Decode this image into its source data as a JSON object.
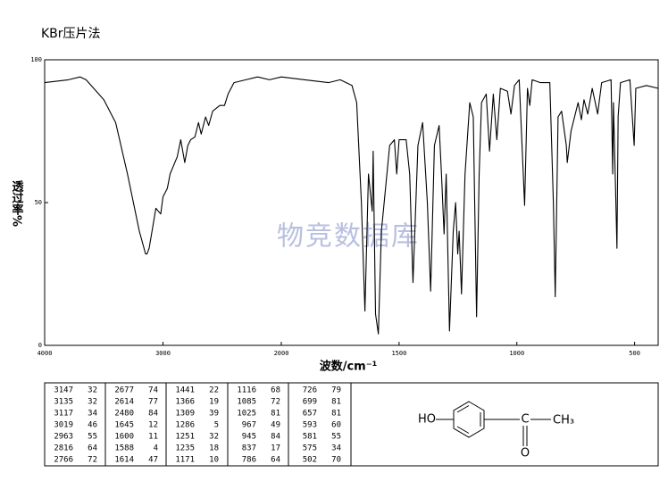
{
  "chart_data": {
    "type": "line",
    "title": "KBr压片法",
    "xlabel": "波数/cm⁻¹",
    "ylabel": "透过率%",
    "watermark": "物竞数据库",
    "xlim": [
      4000,
      400
    ],
    "x_scale_break": 2000,
    "xticks": [
      4000,
      3000,
      2000,
      1500,
      1000,
      500
    ],
    "ylim": [
      0,
      100
    ],
    "yticks": [
      0,
      50,
      100
    ],
    "color": "#000000",
    "x": [
      4000,
      3800,
      3700,
      3650,
      3500,
      3400,
      3300,
      3200,
      3147,
      3135,
      3117,
      3060,
      3019,
      3000,
      2963,
      2940,
      2880,
      2850,
      2816,
      2790,
      2766,
      2730,
      2700,
      2677,
      2640,
      2614,
      2580,
      2520,
      2480,
      2450,
      2400,
      2300,
      2200,
      2100,
      2000,
      1900,
      1800,
      1750,
      1700,
      1680,
      1660,
      1645,
      1630,
      1614,
      1610,
      1600,
      1588,
      1575,
      1540,
      1520,
      1510,
      1500,
      1470,
      1455,
      1441,
      1420,
      1400,
      1380,
      1366,
      1350,
      1330,
      1320,
      1309,
      1300,
      1286,
      1270,
      1260,
      1251,
      1245,
      1235,
      1220,
      1200,
      1185,
      1171,
      1160,
      1150,
      1130,
      1116,
      1100,
      1085,
      1070,
      1040,
      1025,
      1010,
      990,
      967,
      955,
      945,
      935,
      900,
      860,
      845,
      837,
      825,
      810,
      790,
      786,
      770,
      740,
      726,
      715,
      699,
      680,
      657,
      640,
      600,
      593,
      590,
      581,
      575,
      570,
      560,
      520,
      502,
      495,
      450,
      400
    ],
    "values": [
      92,
      93,
      94,
      93,
      86,
      78,
      60,
      40,
      32,
      32,
      34,
      48,
      46,
      52,
      55,
      60,
      66,
      72,
      64,
      70,
      72,
      73,
      78,
      74,
      80,
      77,
      82,
      84,
      84,
      88,
      92,
      93,
      94,
      93,
      94,
      93,
      92,
      93,
      91,
      85,
      50,
      12,
      60,
      47,
      68,
      11,
      4,
      40,
      70,
      72,
      60,
      72,
      72,
      60,
      22,
      70,
      78,
      50,
      19,
      70,
      77,
      60,
      39,
      60,
      5,
      40,
      50,
      32,
      40,
      18,
      60,
      85,
      80,
      10,
      60,
      85,
      88,
      68,
      88,
      72,
      90,
      89,
      81,
      91,
      93,
      49,
      90,
      84,
      93,
      92,
      92,
      50,
      17,
      80,
      82,
      70,
      64,
      75,
      85,
      79,
      86,
      81,
      90,
      81,
      92,
      93,
      60,
      85,
      55,
      34,
      80,
      92,
      93,
      70,
      90,
      91,
      90
    ]
  },
  "peak_table": [
    [
      [
        3147,
        32
      ],
      [
        3135,
        32
      ],
      [
        3117,
        34
      ],
      [
        3019,
        46
      ],
      [
        2963,
        55
      ],
      [
        2816,
        64
      ],
      [
        2766,
        72
      ]
    ],
    [
      [
        2677,
        74
      ],
      [
        2614,
        77
      ],
      [
        2480,
        84
      ],
      [
        1645,
        12
      ],
      [
        1600,
        11
      ],
      [
        1588,
        4
      ],
      [
        1614,
        47
      ]
    ],
    [
      [
        1441,
        22
      ],
      [
        1366,
        19
      ],
      [
        1309,
        39
      ],
      [
        1286,
        5
      ],
      [
        1251,
        32
      ],
      [
        1235,
        18
      ],
      [
        1171,
        10
      ]
    ],
    [
      [
        1116,
        68
      ],
      [
        1085,
        72
      ],
      [
        1025,
        81
      ],
      [
        967,
        49
      ],
      [
        945,
        84
      ],
      [
        837,
        17
      ],
      [
        786,
        64
      ]
    ],
    [
      [
        726,
        79
      ],
      [
        699,
        81
      ],
      [
        657,
        81
      ],
      [
        593,
        60
      ],
      [
        581,
        55
      ],
      [
        575,
        34
      ],
      [
        502,
        70
      ]
    ]
  ],
  "structure": {
    "labels": [
      "HO",
      "C",
      "CH₃",
      "O"
    ]
  }
}
